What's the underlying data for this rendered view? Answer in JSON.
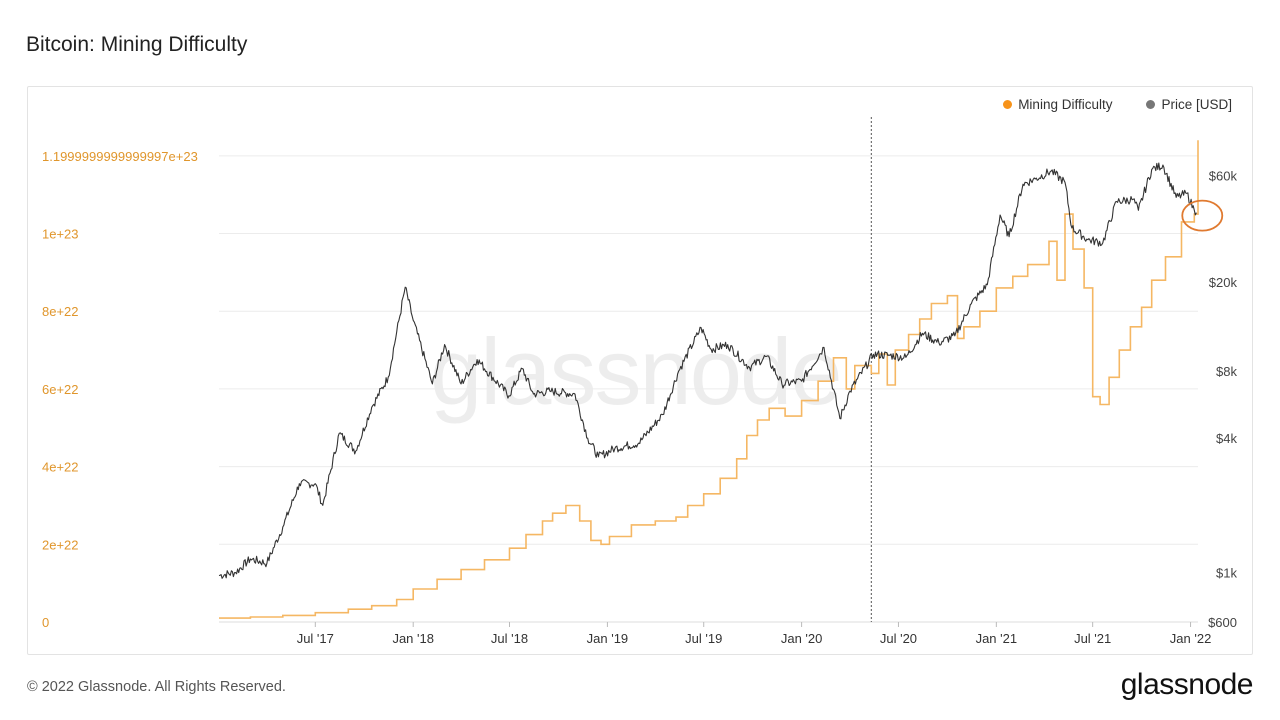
{
  "title": "Bitcoin: Mining Difficulty",
  "copyright": "© 2022 Glassnode. All Rights Reserved.",
  "brand": "glassnode",
  "watermark": "glassnode",
  "colors": {
    "difficulty": "#f7931a",
    "difficulty_line": "#f5b763",
    "price": "#333333",
    "left_ticks": "#e0962c",
    "right_ticks": "#444444",
    "highlight": "#e07a30",
    "grid": "#ececec"
  },
  "legend": [
    {
      "label": "Mining Difficulty",
      "color": "#f7931a"
    },
    {
      "label": "Price [USD]",
      "color": "#777777"
    }
  ],
  "chart_data": {
    "type": "line",
    "title": "Bitcoin: Mining Difficulty",
    "x_ticks": [
      "Jul '17",
      "Jan '18",
      "Jul '18",
      "Jan '19",
      "Jul '19",
      "Jan '20",
      "Jul '20",
      "Jan '21",
      "Jul '21",
      "Jan '22"
    ],
    "x_tick_dates": [
      "2017-07-01",
      "2018-01-01",
      "2018-07-01",
      "2019-01-01",
      "2019-07-01",
      "2020-01-01",
      "2020-07-01",
      "2021-01-01",
      "2021-07-01",
      "2022-01-01"
    ],
    "x_range": [
      "2017-01-01",
      "2022-01-15"
    ],
    "left_axis": {
      "name": "Mining Difficulty",
      "scale": "linear",
      "range": [
        0,
        1.3e+23
      ],
      "ticks": [
        0,
        2e+22,
        4e+22,
        6e+22,
        8e+22,
        1e+23,
        1.2e+23
      ],
      "tick_labels": [
        "0",
        "2e+22",
        "4e+22",
        "6e+22",
        "8e+22",
        "1e+23",
        "1.1999999999999997e+23"
      ]
    },
    "right_axis": {
      "name": "Price [USD]",
      "scale": "log",
      "range": [
        600,
        110000
      ],
      "ticks": [
        600,
        1000,
        4000,
        8000,
        20000,
        60000
      ],
      "tick_labels": [
        "$600",
        "$1k",
        "$4k",
        "$8k",
        "$20k",
        "$60k"
      ]
    },
    "grid": true,
    "vertical_marker_date": "2020-05-11",
    "highlight_circle_date": "2022-01-08",
    "series": [
      {
        "name": "Mining Difficulty",
        "axis": "left",
        "step": true,
        "points": [
          [
            "2017-01-01",
            1e+21
          ],
          [
            "2017-03-01",
            1.3e+21
          ],
          [
            "2017-05-01",
            1.7e+21
          ],
          [
            "2017-07-01",
            2.4e+21
          ],
          [
            "2017-09-01",
            3.3e+21
          ],
          [
            "2017-10-15",
            4.2e+21
          ],
          [
            "2017-12-01",
            5.8e+21
          ],
          [
            "2018-01-01",
            8.5e+21
          ],
          [
            "2018-02-15",
            1.1e+22
          ],
          [
            "2018-04-01",
            1.35e+22
          ],
          [
            "2018-05-15",
            1.6e+22
          ],
          [
            "2018-07-01",
            1.9e+22
          ],
          [
            "2018-08-01",
            2.25e+22
          ],
          [
            "2018-09-01",
            2.6e+22
          ],
          [
            "2018-09-20",
            2.8e+22
          ],
          [
            "2018-10-15",
            3e+22
          ],
          [
            "2018-11-10",
            2.6e+22
          ],
          [
            "2018-12-01",
            2.1e+22
          ],
          [
            "2018-12-20",
            2e+22
          ],
          [
            "2019-01-05",
            2.2e+22
          ],
          [
            "2019-02-15",
            2.5e+22
          ],
          [
            "2019-04-01",
            2.6e+22
          ],
          [
            "2019-05-10",
            2.7e+22
          ],
          [
            "2019-06-01",
            3e+22
          ],
          [
            "2019-07-01",
            3.3e+22
          ],
          [
            "2019-08-01",
            3.7e+22
          ],
          [
            "2019-09-01",
            4.2e+22
          ],
          [
            "2019-09-20",
            4.8e+22
          ],
          [
            "2019-10-10",
            5.2e+22
          ],
          [
            "2019-11-01",
            5.5e+22
          ],
          [
            "2019-12-01",
            5.3e+22
          ],
          [
            "2020-01-01",
            5.7e+22
          ],
          [
            "2020-02-01",
            6.2e+22
          ],
          [
            "2020-03-01",
            6.8e+22
          ],
          [
            "2020-03-25",
            6e+22
          ],
          [
            "2020-04-10",
            6.6e+22
          ],
          [
            "2020-05-11",
            6.4e+22
          ],
          [
            "2020-05-25",
            6.9e+22
          ],
          [
            "2020-06-10",
            6.1e+22
          ],
          [
            "2020-06-25",
            7e+22
          ],
          [
            "2020-07-20",
            7.4e+22
          ],
          [
            "2020-08-10",
            7.8e+22
          ],
          [
            "2020-09-01",
            8.2e+22
          ],
          [
            "2020-10-01",
            8.4e+22
          ],
          [
            "2020-10-20",
            7.3e+22
          ],
          [
            "2020-11-01",
            7.6e+22
          ],
          [
            "2020-12-01",
            8e+22
          ],
          [
            "2021-01-01",
            8.6e+22
          ],
          [
            "2021-02-01",
            8.9e+22
          ],
          [
            "2021-03-01",
            9.2e+22
          ],
          [
            "2021-04-10",
            9.8e+22
          ],
          [
            "2021-04-25",
            8.8e+22
          ],
          [
            "2021-05-10",
            1.05e+23
          ],
          [
            "2021-05-25",
            9.6e+22
          ],
          [
            "2021-06-15",
            8.6e+22
          ],
          [
            "2021-07-01",
            5.8e+22
          ],
          [
            "2021-07-15",
            5.6e+22
          ],
          [
            "2021-08-01",
            6.3e+22
          ],
          [
            "2021-08-20",
            7e+22
          ],
          [
            "2021-09-10",
            7.6e+22
          ],
          [
            "2021-10-01",
            8.1e+22
          ],
          [
            "2021-10-20",
            8.8e+22
          ],
          [
            "2021-11-15",
            9.4e+22
          ],
          [
            "2021-12-15",
            1.03e+23
          ],
          [
            "2022-01-08",
            1.05e+23
          ],
          [
            "2022-01-15",
            1.24e+23
          ]
        ]
      },
      {
        "name": "Price [USD]",
        "axis": "right",
        "points": [
          [
            "2017-01-01",
            970
          ],
          [
            "2017-02-01",
            1000
          ],
          [
            "2017-03-01",
            1150
          ],
          [
            "2017-04-01",
            1100
          ],
          [
            "2017-05-01",
            1600
          ],
          [
            "2017-06-01",
            2500
          ],
          [
            "2017-07-01",
            2500
          ],
          [
            "2017-07-15",
            2000
          ],
          [
            "2017-08-15",
            4200
          ],
          [
            "2017-09-15",
            3500
          ],
          [
            "2017-10-15",
            5500
          ],
          [
            "2017-11-15",
            7500
          ],
          [
            "2017-12-17",
            19000
          ],
          [
            "2018-01-01",
            13500
          ],
          [
            "2018-02-06",
            7000
          ],
          [
            "2018-03-01",
            10500
          ],
          [
            "2018-04-01",
            7000
          ],
          [
            "2018-05-01",
            9000
          ],
          [
            "2018-06-30",
            6200
          ],
          [
            "2018-07-25",
            8200
          ],
          [
            "2018-08-15",
            6300
          ],
          [
            "2018-09-15",
            6500
          ],
          [
            "2018-11-01",
            6300
          ],
          [
            "2018-11-25",
            4000
          ],
          [
            "2018-12-15",
            3300
          ],
          [
            "2019-01-15",
            3600
          ],
          [
            "2019-03-01",
            3800
          ],
          [
            "2019-04-15",
            5100
          ],
          [
            "2019-05-15",
            8000
          ],
          [
            "2019-06-26",
            12500
          ],
          [
            "2019-07-15",
            10000
          ],
          [
            "2019-08-15",
            10500
          ],
          [
            "2019-09-25",
            8300
          ],
          [
            "2019-10-27",
            9300
          ],
          [
            "2019-11-25",
            7000
          ],
          [
            "2020-01-01",
            7200
          ],
          [
            "2020-02-12",
            10200
          ],
          [
            "2020-03-13",
            4900
          ],
          [
            "2020-04-01",
            6500
          ],
          [
            "2020-05-15",
            9500
          ],
          [
            "2020-06-15",
            9400
          ],
          [
            "2020-07-15",
            9200
          ],
          [
            "2020-08-15",
            11800
          ],
          [
            "2020-09-15",
            10700
          ],
          [
            "2020-10-15",
            11500
          ],
          [
            "2020-11-15",
            16000
          ],
          [
            "2020-12-15",
            19500
          ],
          [
            "2021-01-08",
            40000
          ],
          [
            "2021-01-25",
            32000
          ],
          [
            "2021-02-20",
            55000
          ],
          [
            "2021-03-15",
            58000
          ],
          [
            "2021-04-14",
            63000
          ],
          [
            "2021-05-10",
            56000
          ],
          [
            "2021-05-23",
            35000
          ],
          [
            "2021-06-22",
            31000
          ],
          [
            "2021-07-20",
            30000
          ],
          [
            "2021-08-15",
            46000
          ],
          [
            "2021-09-15",
            47000
          ],
          [
            "2021-09-25",
            42000
          ],
          [
            "2021-10-20",
            64000
          ],
          [
            "2021-11-10",
            67000
          ],
          [
            "2021-12-05",
            48000
          ],
          [
            "2021-12-25",
            50000
          ],
          [
            "2022-01-08",
            42000
          ],
          [
            "2022-01-12",
            41000
          ]
        ]
      }
    ]
  }
}
